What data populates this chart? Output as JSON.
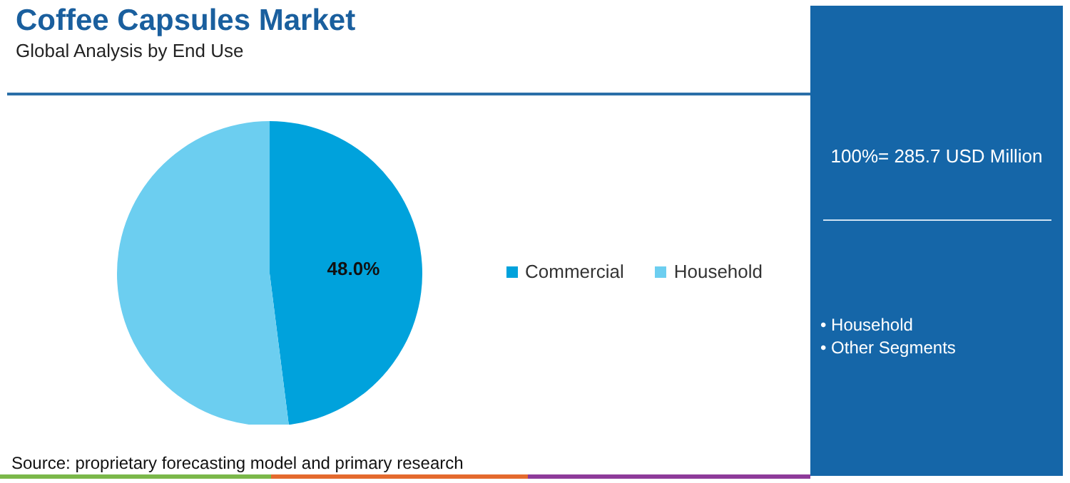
{
  "chart_data": {
    "type": "pie",
    "title": "Coffee Capsules Market",
    "subtitle": "Global Analysis by End Use",
    "categories": [
      "Commercial",
      "Household"
    ],
    "values": [
      48.0,
      52.0
    ],
    "colors": [
      "#00a2dc",
      "#6ccef0"
    ],
    "value_labels": [
      "48.0%",
      null
    ],
    "legend": "right",
    "annotations": [
      "100%= 285.7 USD Million",
      "• Household",
      "• Other Segments",
      "Source: proprietary forecasting model and primary research"
    ]
  }
}
